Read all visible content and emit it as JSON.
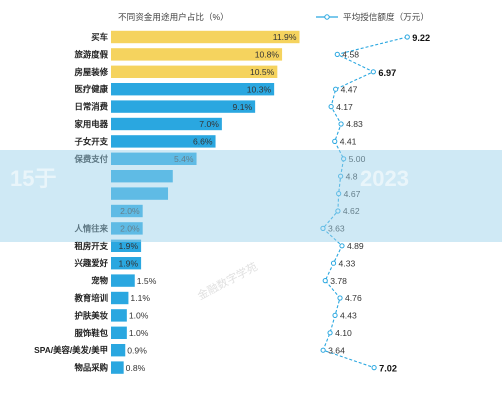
{
  "header": {
    "bar_title": "不同资金用途用户占比（%）",
    "line_legend": "平均授信额度（万元）"
  },
  "watermark": "金融数字学苑",
  "overlay_fragments": [
    "15于",
    "2023"
  ],
  "colors": {
    "bar_highlight": "#f5d35e",
    "bar_default": "#2aa7e0",
    "line": "#2aa7e0",
    "point": "#ffffff",
    "banner": "#9ad2ea"
  },
  "chart_data": [
    {
      "type": "bar",
      "orientation": "horizontal",
      "title": "不同资金用途用户占比（%）",
      "categories": [
        "买车",
        "旅游度假",
        "房屋装修",
        "医疗健康",
        "日常消费",
        "家用电器",
        "子女开支",
        "保费支付",
        "",
        "",
        "",
        "人情往来",
        "租房开支",
        "兴趣爱好",
        "宠物",
        "教育培训",
        "护肤美妆",
        "服饰鞋包",
        "SPA/美容/美发/美甲",
        "物品采购"
      ],
      "values": [
        11.9,
        10.8,
        10.5,
        10.3,
        9.1,
        7.0,
        6.6,
        5.4,
        3.9,
        3.6,
        2.0,
        2.0,
        1.9,
        1.9,
        1.5,
        1.1,
        1.0,
        1.0,
        0.9,
        0.8
      ],
      "value_labels": [
        "11.9%",
        "10.8%",
        "10.5%",
        "10.3%",
        "9.1%",
        "7.0%",
        "6.6%",
        "5.4%",
        "",
        "",
        "2.0%",
        "2.0%",
        "1.9%",
        "1.9%",
        "1.5%",
        "1.1%",
        "1.0%",
        "1.0%",
        "0.9%",
        "0.8%"
      ],
      "highlight_top": 3,
      "xlim": [
        0,
        12.5
      ]
    },
    {
      "type": "line",
      "orientation": "vertical",
      "title": "平均授信额度（万元）",
      "categories": [
        "买车",
        "旅游度假",
        "房屋装修",
        "医疗健康",
        "日常消费",
        "家用电器",
        "子女开支",
        "保费支付",
        "",
        "",
        "",
        "人情往来",
        "租房开支",
        "兴趣爱好",
        "宠物",
        "教育培训",
        "护肤美妆",
        "服饰鞋包",
        "SPA/美容/美发/美甲",
        "物品采购"
      ],
      "values": [
        9.22,
        4.58,
        6.97,
        4.47,
        4.17,
        4.83,
        4.41,
        5.0,
        4.8,
        4.67,
        4.62,
        3.63,
        4.89,
        4.33,
        3.78,
        4.76,
        4.43,
        4.1,
        3.64,
        7.02
      ],
      "value_labels": [
        "9.22",
        "4.58",
        "6.97",
        "4.47",
        "4.17",
        "4.83",
        "4.41",
        "5.00",
        "4.8",
        "4.67",
        "4.62",
        "3.63",
        "4.89",
        "4.33",
        "3.78",
        "4.76",
        "4.43",
        "4.10",
        "3.64",
        "7.02"
      ],
      "bold_labels": [
        "9.22",
        "6.97",
        "7.02"
      ],
      "xlim": [
        3.3,
        9.6
      ]
    }
  ]
}
